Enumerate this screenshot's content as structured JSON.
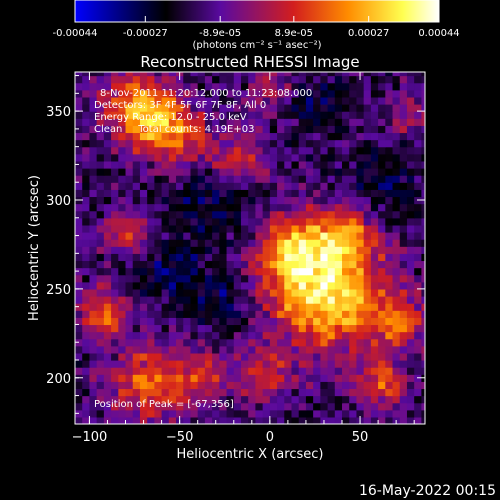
{
  "chart_data": {
    "type": "heatmap",
    "title": "Reconstructed RHESSI Image",
    "xlabel": "Heliocentric X (arcsec)",
    "ylabel": "Heliocentric Y (arcsec)",
    "xlim": [
      -108,
      86
    ],
    "ylim": [
      174,
      372
    ],
    "xticks": [
      -100,
      -50,
      0,
      50
    ],
    "yticks": [
      200,
      250,
      300,
      350
    ],
    "colorbar": {
      "tick_labels": [
        "-0.00044",
        "-0.00027",
        "-8.9e-05",
        "8.9e-05",
        "0.00027",
        "0.00044"
      ],
      "tick_values": [
        -0.00044,
        -0.00027,
        -8.9e-05,
        8.9e-05,
        0.00027,
        0.00044
      ],
      "range": [
        -0.00044,
        0.00044
      ],
      "unit": "(photons cm⁻² s⁻¹ asec⁻²)",
      "colors": [
        "#0000ff",
        "#000000",
        "#5a0aa0",
        "#d21e1e",
        "#ff8c00",
        "#ffff50",
        "#ffffff"
      ]
    },
    "annotations": [
      "8-Nov-2011 11:20:12.000 to 11:23:08.000",
      "Detectors: 3F 4F 5F 6F 7F 8F, All 0",
      "Energy Range: 12.0 - 25.0 keV",
      "Clean     Total counts: 4.19E+03"
    ],
    "peak_label": "Position of Peak = [-67,356]",
    "peak": [
      -67,
      356
    ],
    "grid": false
  },
  "footer": {
    "date": "16-May-2022 00:15"
  }
}
